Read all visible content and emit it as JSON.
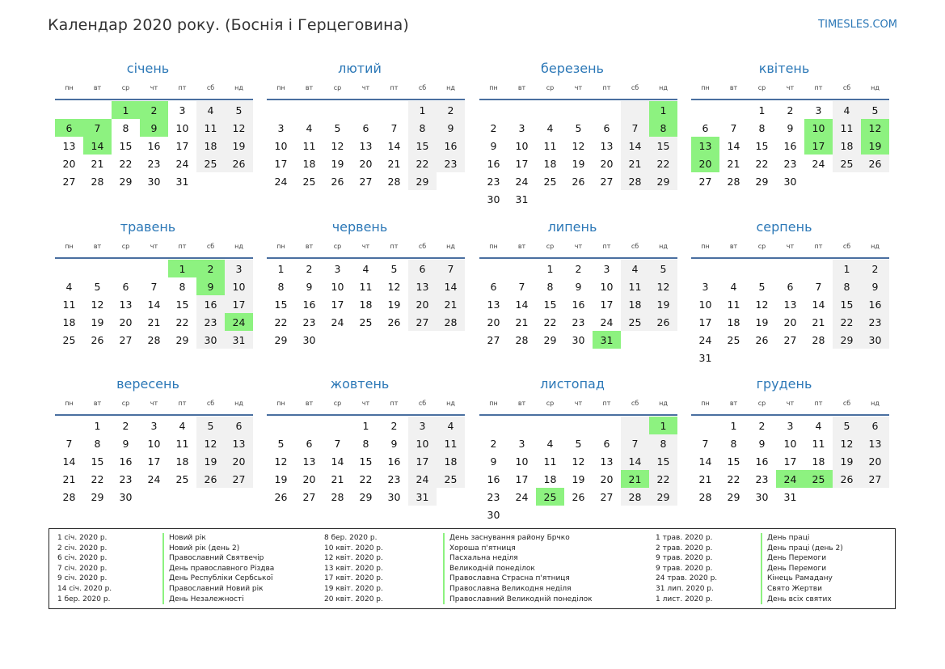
{
  "title": "Календар 2020 року. (Боснія і Герцеговина)",
  "site": "TIMESLES.COM",
  "colors": {
    "accent": "#2c78b7",
    "holiday": "#8df280",
    "weekend": "#f1f1f1",
    "rule": "#4a6fa0"
  },
  "weekdays": [
    "пн",
    "вт",
    "ср",
    "чт",
    "пт",
    "сб",
    "нд"
  ],
  "months": [
    {
      "name": "січень",
      "start": 2,
      "days": 31,
      "holidays": [
        1,
        2,
        6,
        7,
        9,
        14
      ]
    },
    {
      "name": "лютий",
      "start": 5,
      "days": 29,
      "holidays": []
    },
    {
      "name": "березень",
      "start": 6,
      "days": 31,
      "holidays": [
        1,
        8
      ]
    },
    {
      "name": "квітень",
      "start": 2,
      "days": 30,
      "holidays": [
        10,
        12,
        13,
        17,
        19,
        20
      ]
    },
    {
      "name": "травень",
      "start": 4,
      "days": 31,
      "holidays": [
        1,
        2,
        9,
        24
      ]
    },
    {
      "name": "червень",
      "start": 0,
      "days": 30,
      "holidays": []
    },
    {
      "name": "липень",
      "start": 2,
      "days": 31,
      "holidays": [
        31
      ]
    },
    {
      "name": "серпень",
      "start": 5,
      "days": 31,
      "holidays": []
    },
    {
      "name": "вересень",
      "start": 1,
      "days": 30,
      "holidays": []
    },
    {
      "name": "жовтень",
      "start": 3,
      "days": 31,
      "holidays": []
    },
    {
      "name": "листопад",
      "start": 6,
      "days": 30,
      "holidays": [
        1,
        21,
        25
      ]
    },
    {
      "name": "грудень",
      "start": 1,
      "days": 31,
      "holidays": [
        24,
        25
      ]
    }
  ],
  "legend": [
    [
      {
        "date": "1 січ. 2020 р.",
        "name": "Новий рік"
      },
      {
        "date": "2 січ. 2020 р.",
        "name": "Новий рік (день 2)"
      },
      {
        "date": "6 січ. 2020 р.",
        "name": "Православний Святвечір"
      },
      {
        "date": "7 січ. 2020 р.",
        "name": "День православного Різдва"
      },
      {
        "date": "9 січ. 2020 р.",
        "name": "День Республіки Сербської"
      },
      {
        "date": "14 січ. 2020 р.",
        "name": "Православний Новий рік"
      },
      {
        "date": "1 бер. 2020 р.",
        "name": "День Незалежності"
      }
    ],
    [
      {
        "date": "8 бер. 2020 р.",
        "name": "День заснування району Брчко"
      },
      {
        "date": "10 квіт. 2020 р.",
        "name": "Хороша п'ятниця"
      },
      {
        "date": "12 квіт. 2020 р.",
        "name": "Пасхальна неділя"
      },
      {
        "date": "13 квіт. 2020 р.",
        "name": "Великодній понеділок"
      },
      {
        "date": "17 квіт. 2020 р.",
        "name": "Православна Страсна п'ятниця"
      },
      {
        "date": "19 квіт. 2020 р.",
        "name": "Православна Великодня неділя"
      },
      {
        "date": "20 квіт. 2020 р.",
        "name": "Православний Великодній понеділок"
      }
    ],
    [
      {
        "date": "1 трав. 2020 р.",
        "name": "День праці"
      },
      {
        "date": "2 трав. 2020 р.",
        "name": "День праці (день 2)"
      },
      {
        "date": "9 трав. 2020 р.",
        "name": "День Перемоги"
      },
      {
        "date": "9 трав. 2020 р.",
        "name": "День Перемоги"
      },
      {
        "date": "24 трав. 2020 р.",
        "name": "Кінець Рамадану"
      },
      {
        "date": "31 лип. 2020 р.",
        "name": "Свято Жертви"
      },
      {
        "date": "1 лист. 2020 р.",
        "name": "День всіх святих"
      }
    ]
  ]
}
